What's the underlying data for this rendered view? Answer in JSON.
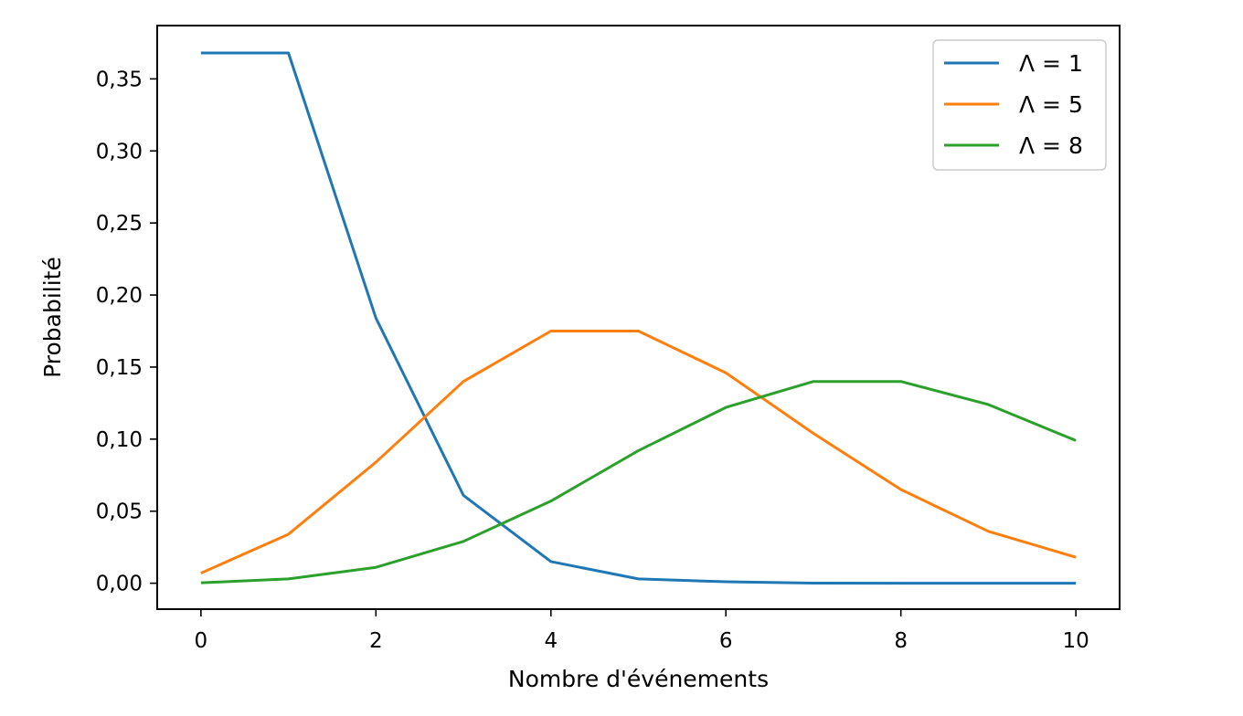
{
  "chart_data": {
    "type": "line",
    "title": "",
    "xlabel": "Nombre d'événements",
    "ylabel": "Probabilité",
    "x": [
      0,
      1,
      2,
      3,
      4,
      5,
      6,
      7,
      8,
      9,
      10
    ],
    "xlim": [
      -0.5,
      10.5
    ],
    "ylim": [
      -0.018,
      0.387
    ],
    "xticks": [
      0,
      2,
      4,
      6,
      8,
      10
    ],
    "xtick_labels": [
      "0",
      "2",
      "4",
      "6",
      "8",
      "10"
    ],
    "yticks": [
      0.0,
      0.05,
      0.1,
      0.15,
      0.2,
      0.25,
      0.3,
      0.35
    ],
    "ytick_labels": [
      "0,00",
      "0,05",
      "0,10",
      "0,15",
      "0,20",
      "0,25",
      "0,30",
      "0,35"
    ],
    "grid": false,
    "legend_position": "top-right",
    "series": [
      {
        "name": "Λ = 1",
        "color": "#1f77b4",
        "values": [
          0.368,
          0.368,
          0.184,
          0.061,
          0.015,
          0.003,
          0.001,
          0.0001,
          0.0,
          0.0,
          0.0
        ]
      },
      {
        "name": "Λ = 5",
        "color": "#ff7f0e",
        "values": [
          0.007,
          0.034,
          0.084,
          0.14,
          0.175,
          0.175,
          0.146,
          0.104,
          0.065,
          0.036,
          0.018
        ]
      },
      {
        "name": "Λ = 8",
        "color": "#2ca02c",
        "values": [
          0.0003,
          0.003,
          0.011,
          0.029,
          0.057,
          0.092,
          0.122,
          0.14,
          0.14,
          0.124,
          0.099
        ]
      }
    ]
  }
}
